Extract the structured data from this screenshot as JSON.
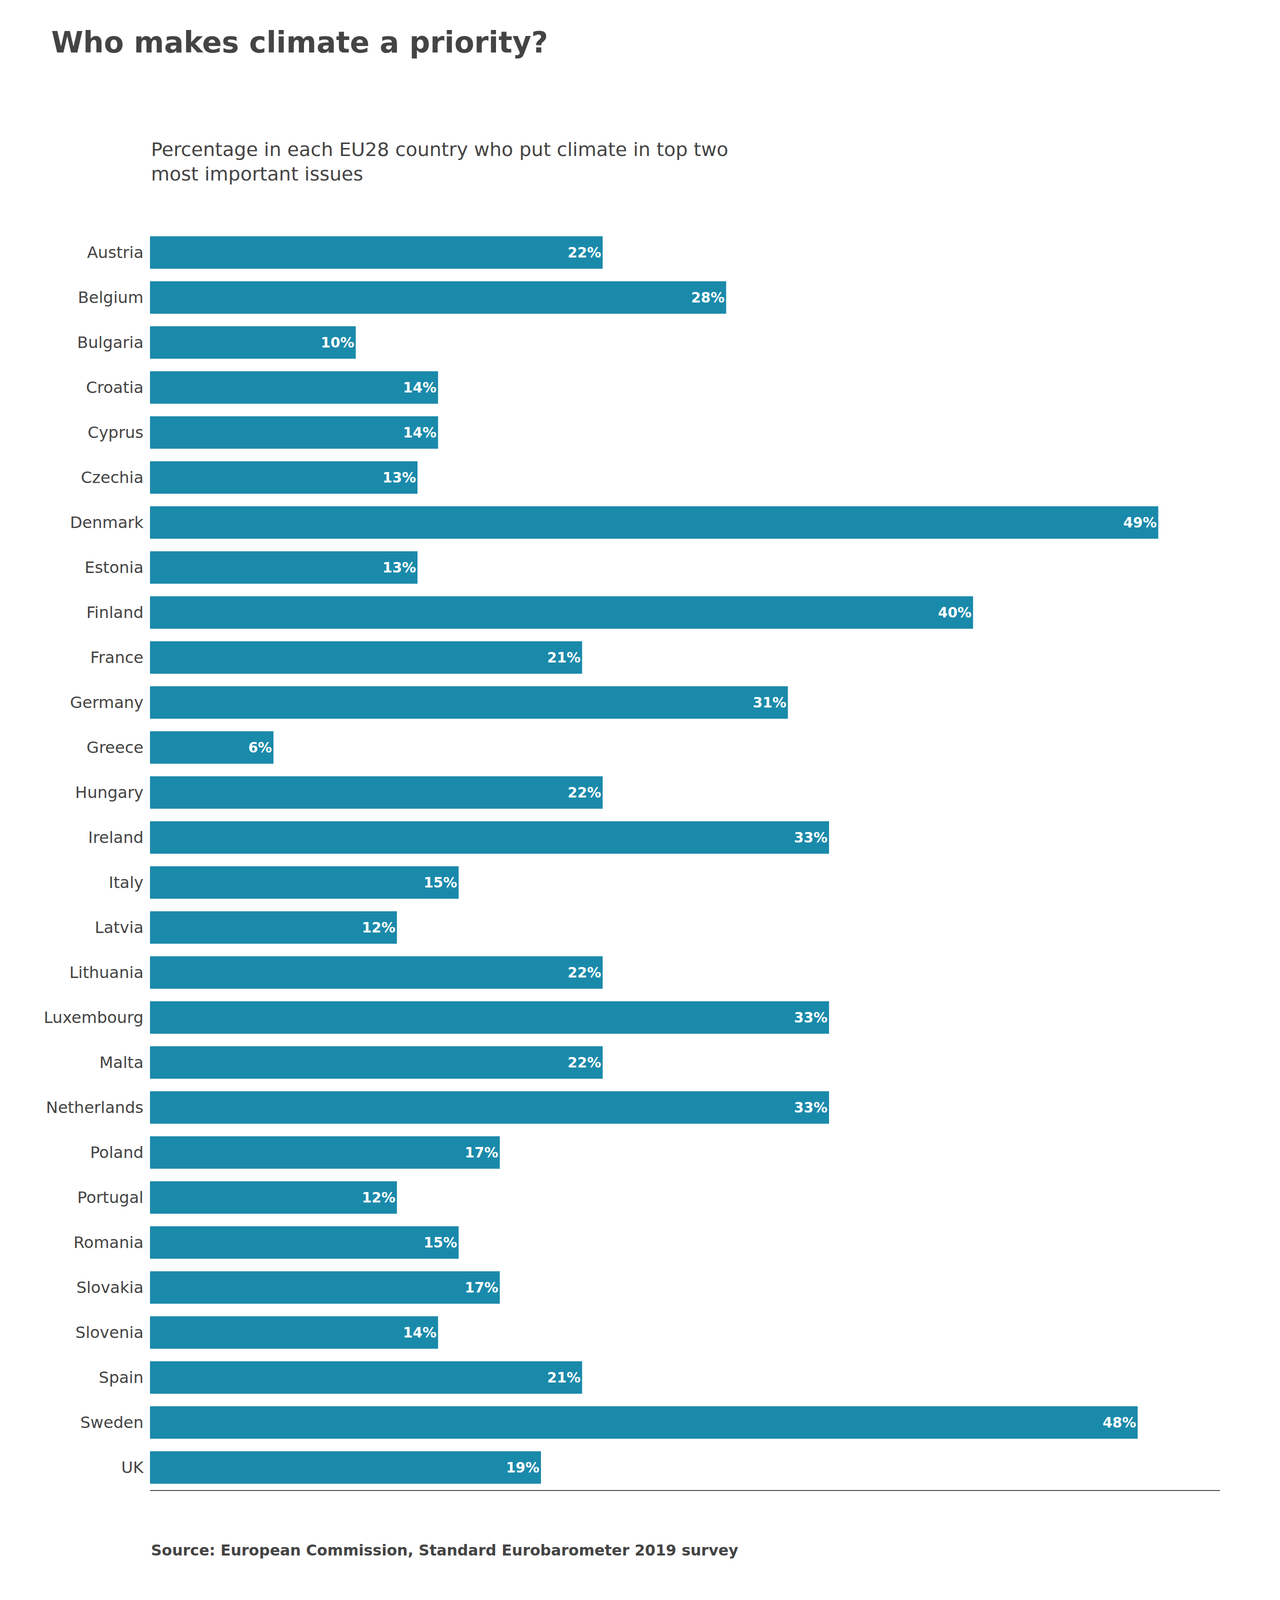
{
  "chart_data": {
    "type": "bar",
    "orientation": "horizontal",
    "title": "Who makes climate a priority?",
    "subtitle": "Percentage in each EU28 country who put climate in top two\nmost important issues",
    "annotations": [
      "Source: European Commission, Standard Eurobarometer 2019 survey"
    ],
    "categories": [
      "Austria",
      "Belgium",
      "Bulgaria",
      "Croatia",
      "Cyprus",
      "Czechia",
      "Denmark",
      "Estonia",
      "Finland",
      "France",
      "Germany",
      "Greece",
      "Hungary",
      "Ireland",
      "Italy",
      "Latvia",
      "Lithuania",
      "Luxembourg",
      "Malta",
      "Netherlands",
      "Poland",
      "Portugal",
      "Romania",
      "Slovakia",
      "Slovenia",
      "Spain",
      "Sweden",
      "UK"
    ],
    "values": [
      22,
      28,
      10,
      14,
      14,
      13,
      49,
      13,
      40,
      21,
      31,
      6,
      22,
      33,
      15,
      12,
      22,
      33,
      22,
      33,
      17,
      12,
      15,
      17,
      14,
      21,
      48,
      19
    ],
    "value_labels": [
      "22%",
      "28%",
      "10%",
      "14%",
      "14%",
      "13%",
      "49%",
      "13%",
      "40%",
      "21%",
      "31%",
      "6%",
      "22%",
      "33%",
      "15%",
      "12%",
      "22%",
      "33%",
      "22%",
      "33%",
      "17%",
      "12%",
      "15%",
      "17%",
      "14%",
      "21%",
      "48%",
      "19%"
    ],
    "data_labels": true,
    "color": "#1a8aab",
    "xlim": [
      0,
      52
    ],
    "tick_labels": "y",
    "grid": false
  }
}
